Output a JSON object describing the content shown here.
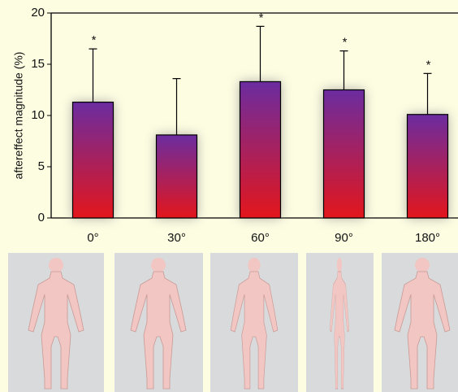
{
  "chart_data": {
    "type": "bar",
    "categories": [
      "0°",
      "30°",
      "60°",
      "90°",
      "180°"
    ],
    "values": [
      11.3,
      8.1,
      13.3,
      12.5,
      10.1
    ],
    "errors": [
      5.2,
      5.5,
      5.4,
      3.8,
      4.0
    ],
    "markers": [
      "*",
      null,
      "*",
      "*",
      "*"
    ],
    "ylabel": "aftereffect magnitude (%)",
    "ylim": [
      0,
      20
    ],
    "yticks": [
      0,
      5,
      10,
      15,
      20
    ],
    "gradient": [
      "#6b2ca0",
      "#e3161c"
    ]
  }
}
